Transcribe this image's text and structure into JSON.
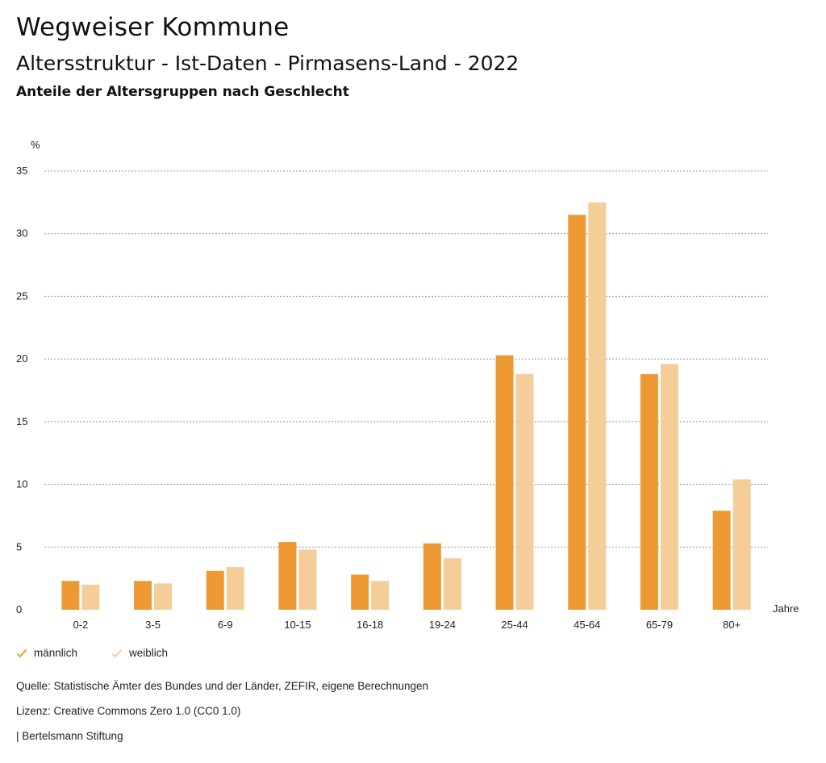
{
  "header": {
    "title": "Wegweiser Kommune",
    "subtitle": "Altersstruktur - Ist-Daten - Pirmasens-Land - 2022",
    "subsubtitle": "Anteile der Altersgruppen nach Geschlecht"
  },
  "colors": {
    "maennlich": "#ED9A35",
    "weiblich": "#F5CD98",
    "grid": "#9a9a9a"
  },
  "chart_data": {
    "type": "bar",
    "title": "Anteile der Altersgruppen nach Geschlecht",
    "ylabel": "%",
    "xlabel": "Jahre",
    "ylim": [
      0,
      35
    ],
    "yticks": [
      0,
      5,
      10,
      15,
      20,
      25,
      30,
      35
    ],
    "grid": true,
    "legend_position": "bottom-left",
    "categories": [
      "0-2",
      "3-5",
      "6-9",
      "10-15",
      "16-18",
      "19-24",
      "25-44",
      "45-64",
      "65-79",
      "80+"
    ],
    "series": [
      {
        "name": "männlich",
        "values": [
          2.3,
          2.3,
          3.1,
          5.4,
          2.8,
          5.3,
          20.3,
          31.5,
          18.8,
          7.9
        ]
      },
      {
        "name": "weiblich",
        "values": [
          2.0,
          2.1,
          3.4,
          4.8,
          2.3,
          4.1,
          18.8,
          32.5,
          19.6,
          10.4
        ]
      }
    ]
  },
  "legend": {
    "items": [
      "männlich",
      "weiblich"
    ]
  },
  "footer": {
    "source": "Quelle: Statistische Ämter des Bundes und der Länder, ZEFIR, eigene Berechnungen",
    "license": "Lizenz: Creative Commons Zero 1.0 (CC0 1.0)",
    "publisher": "| Bertelsmann Stiftung"
  }
}
